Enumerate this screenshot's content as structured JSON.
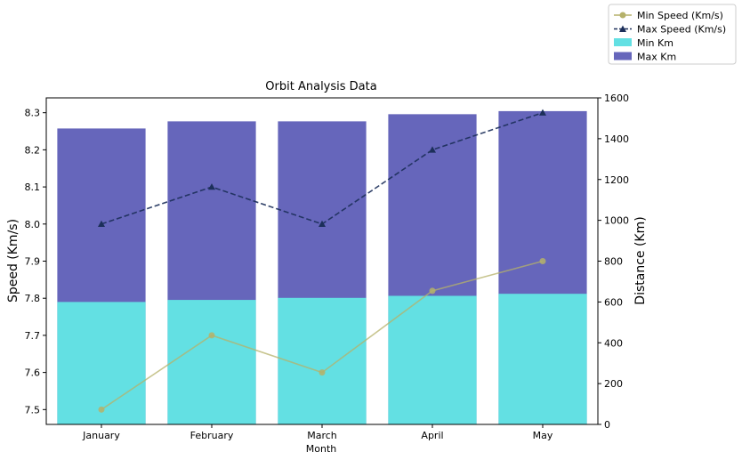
{
  "chart_data": {
    "type": "bar",
    "title": "Orbit Analysis Data",
    "xlabel": "Month",
    "ylabel_left": "Speed (Km/s)",
    "ylabel_right": "Distance (Km)",
    "categories": [
      "January",
      "February",
      "March",
      "April",
      "May"
    ],
    "ylim_left": [
      7.46,
      8.34
    ],
    "ylim_right": [
      0,
      1600
    ],
    "yticks_left": [
      7.5,
      7.6,
      7.7,
      7.8,
      7.9,
      8.0,
      8.1,
      8.2,
      8.3
    ],
    "yticks_right": [
      0,
      200,
      400,
      600,
      800,
      1000,
      1200,
      1400,
      1600
    ],
    "bar_series": [
      {
        "name": "Min Km",
        "color": "#63e0e3",
        "values": [
          600,
          610,
          620,
          630,
          640
        ]
      },
      {
        "name": "Max Km",
        "color": "#6666bb",
        "values": [
          1450,
          1485,
          1485,
          1520,
          1535
        ]
      }
    ],
    "line_series": [
      {
        "name": "Min Speed (Km/s)",
        "color": "#b5b16a",
        "marker": "circle",
        "dash": "solid",
        "values": [
          7.5,
          7.7,
          7.6,
          7.82,
          7.9
        ]
      },
      {
        "name": "Max Speed (Km/s)",
        "color": "#1c2f5a",
        "marker": "triangle",
        "dash": "dashed",
        "values": [
          8.0,
          8.1,
          8.0,
          8.2,
          8.3
        ]
      }
    ],
    "legend_position": "top-right",
    "grid": false
  }
}
